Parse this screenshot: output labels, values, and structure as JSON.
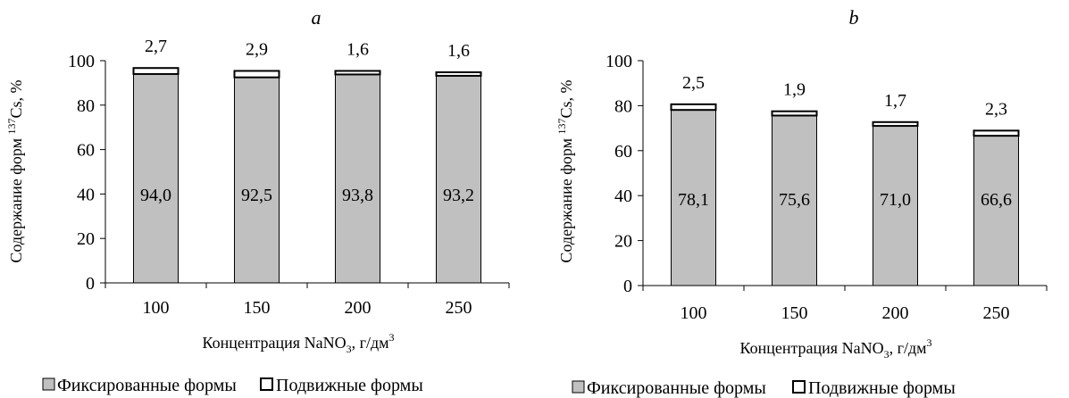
{
  "chart_data": [
    {
      "type": "bar",
      "stacked": true,
      "title": "a",
      "ylabel": "Содержание форм ",
      "ylabel_sup": "137",
      "ylabel_tail": "Cs, %",
      "xlabel": "Концентрация NaNO",
      "xlabel_sub": "3",
      "xlabel_tail": ", г/дм",
      "xlabel_sup": "3",
      "categories": [
        "100",
        "150",
        "200",
        "250"
      ],
      "ylim": [
        0,
        100
      ],
      "yticks": [
        "0",
        "20",
        "40",
        "60",
        "80",
        "100"
      ],
      "series": [
        {
          "name": "Фиксированные формы",
          "values": [
            94.0,
            92.5,
            93.8,
            93.2
          ],
          "labels": [
            "94,0",
            "92,5",
            "93,8",
            "93,2"
          ],
          "color": "#c0c0c0"
        },
        {
          "name": "Подвижные формы",
          "values": [
            2.7,
            2.9,
            1.6,
            1.6
          ],
          "labels": [
            "2,7",
            "2,9",
            "1,6",
            "1,6"
          ],
          "color": "#ffffff"
        }
      ],
      "legend": "bottom",
      "grid": false
    },
    {
      "type": "bar",
      "stacked": true,
      "title": "b",
      "ylabel": "Содержание форм ",
      "ylabel_sup": "137",
      "ylabel_tail": "Cs, %",
      "xlabel": "Концентрация NaNO",
      "xlabel_sub": "3",
      "xlabel_tail": ", г/дм",
      "xlabel_sup": "3",
      "categories": [
        "100",
        "150",
        "200",
        "250"
      ],
      "ylim": [
        0,
        100
      ],
      "yticks": [
        "0",
        "20",
        "40",
        "60",
        "80",
        "100"
      ],
      "series": [
        {
          "name": "Фиксированные формы",
          "values": [
            78.1,
            75.6,
            71.0,
            66.6
          ],
          "labels": [
            "78,1",
            "75,6",
            "71,0",
            "66,6"
          ],
          "color": "#c0c0c0"
        },
        {
          "name": "Подвижные формы",
          "values": [
            2.5,
            1.9,
            1.7,
            2.3
          ],
          "labels": [
            "2,5",
            "1,9",
            "1,7",
            "2,3"
          ],
          "color": "#ffffff"
        }
      ],
      "legend": "bottom",
      "grid": false
    }
  ]
}
